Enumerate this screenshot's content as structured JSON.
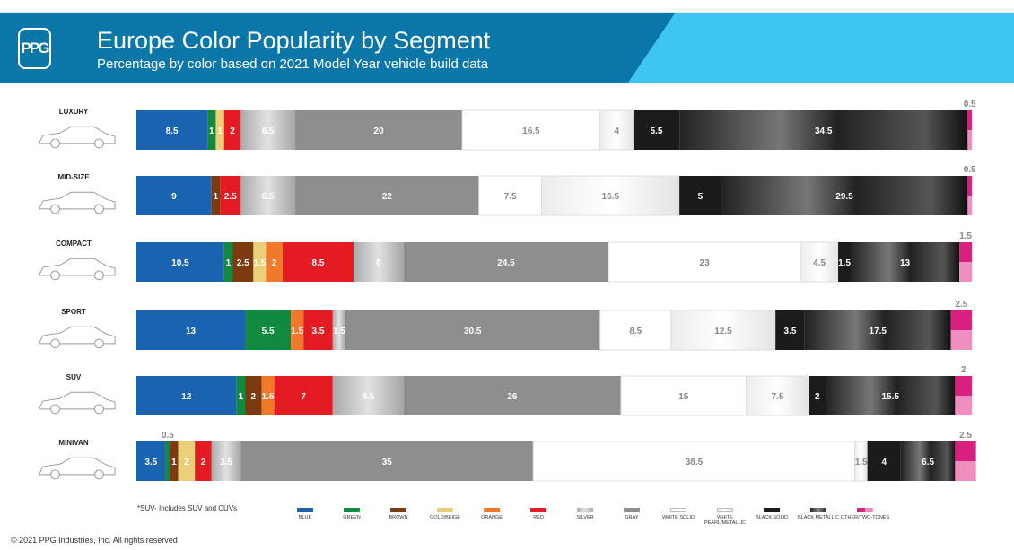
{
  "header": {
    "logo": "PPG",
    "title": "Europe Color Popularity by Segment",
    "subtitle": "Percentage by color based on 2021 Model Year vehicle build data"
  },
  "chart_data": {
    "type": "bar",
    "orientation": "horizontal",
    "stacked": true,
    "xlim": [
      0,
      100
    ],
    "categories": [
      "LUXURY",
      "MID-SIZE",
      "COMPACT",
      "SPORT",
      "SUV",
      "MINIVAN"
    ],
    "series": [
      {
        "name": "BLUE",
        "color": "#1a63b0",
        "values": [
          8.5,
          9,
          10.5,
          13,
          12,
          3.5
        ]
      },
      {
        "name": "GREEN",
        "color": "#11893e",
        "values": [
          1,
          0,
          1,
          5.5,
          1,
          0.5
        ]
      },
      {
        "name": "BROWN",
        "color": "#7b3a10",
        "values": [
          0,
          1,
          2.5,
          0,
          2,
          1
        ]
      },
      {
        "name": "GOLD/BEIGE",
        "color": "#e8cf78",
        "values": [
          1,
          0,
          1.5,
          0,
          0,
          2
        ]
      },
      {
        "name": "ORANGE",
        "color": "#ef7a2a",
        "values": [
          0,
          0,
          2,
          1.5,
          1.5,
          0
        ]
      },
      {
        "name": "RED",
        "color": "#e51b24",
        "values": [
          2,
          2.5,
          8.5,
          3.5,
          7,
          2
        ]
      },
      {
        "name": "SILVER",
        "color": "silver",
        "values": [
          6.5,
          6.5,
          6,
          1.5,
          8.5,
          3.5
        ]
      },
      {
        "name": "GRAY",
        "color": "#8e8e8e",
        "values": [
          20,
          22,
          24.5,
          30.5,
          26,
          35
        ]
      },
      {
        "name": "WHITE SOLID",
        "color": "#ffffff",
        "values": [
          16.5,
          7.5,
          23,
          8.5,
          15,
          38.5
        ]
      },
      {
        "name": "WHITE PEARL/METALLIC",
        "color": "pearl",
        "values": [
          4,
          16.5,
          4.5,
          12.5,
          7.5,
          1.5
        ]
      },
      {
        "name": "BLACK SOLID",
        "color": "#1b1b1b",
        "values": [
          5.5,
          5,
          1.5,
          3.5,
          2,
          4
        ]
      },
      {
        "name": "BLACK METALLIC",
        "color": "blackmetal",
        "values": [
          34.5,
          29.5,
          13,
          17.5,
          15.5,
          6.5
        ]
      },
      {
        "name": "OTHER/TWO-TONES",
        "color": "other",
        "values": [
          0.5,
          0.5,
          1.5,
          2.5,
          2,
          2.5
        ]
      }
    ],
    "legend_position": "bottom"
  },
  "footnote": "*SUV- Includes SUV and CUVs",
  "copyright": "© 2021 PPG Industries, Inc. All rights reserved"
}
